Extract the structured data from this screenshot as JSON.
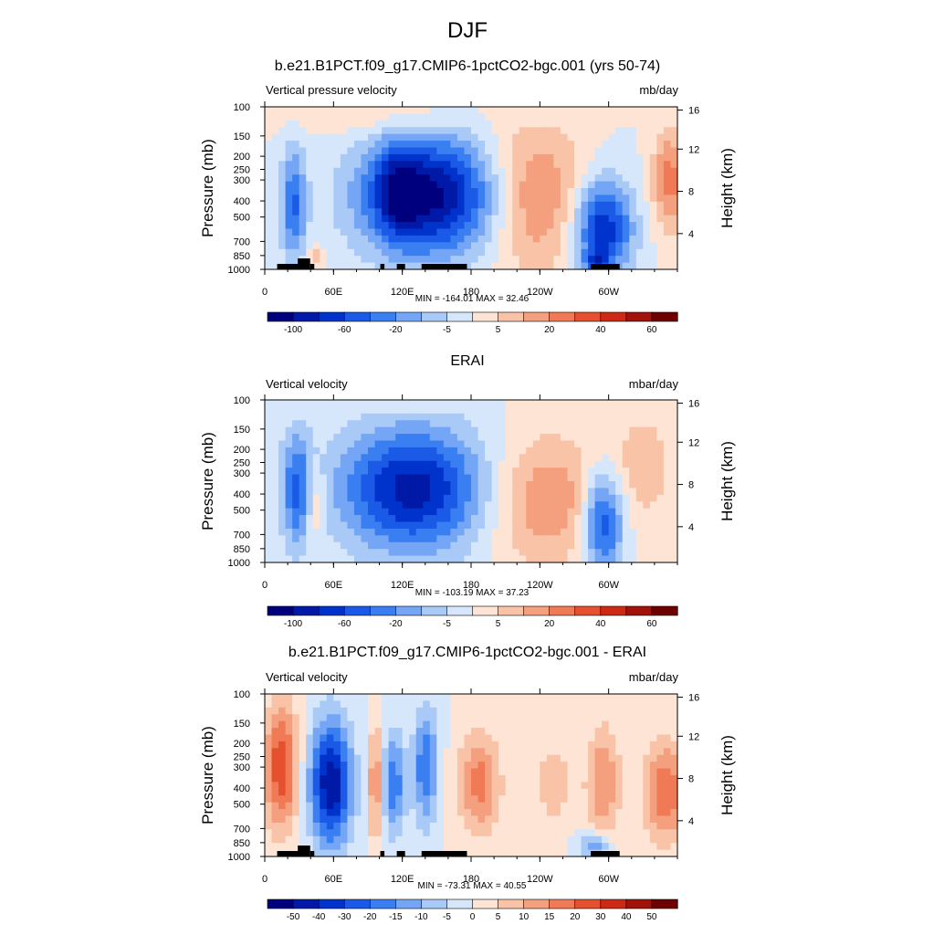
{
  "figure": {
    "title": "DJF"
  },
  "chart_data": [
    {
      "type": "heatmap",
      "title": "b.e21.B1PCT.f09_g17.CMIP6-1pctCO2-bgc.001 (yrs 50-74)",
      "left_label": "Vertical pressure velocity",
      "units": "mb/day",
      "ylabel": "Pressure (mb)",
      "ylabel_right": "Height (km)",
      "x_ticks": [
        "0",
        "60E",
        "120E",
        "180",
        "120W",
        "60W"
      ],
      "y_ticks": [
        "100",
        "150",
        "200",
        "250",
        "300",
        "400",
        "500",
        "700",
        "850",
        "1000"
      ],
      "height_ticks": [
        "4",
        "8",
        "12",
        "16"
      ],
      "stats": "MIN = -164.01  MAX =  32.46",
      "colorbar_labels": [
        "-100",
        "-60",
        "-20",
        "-5",
        "5",
        "20",
        "40",
        "60"
      ],
      "min": -164.01,
      "max": 32.46
    },
    {
      "type": "heatmap",
      "title": "ERAI",
      "left_label": "Vertical velocity",
      "units": "mbar/day",
      "ylabel": "Pressure (mb)",
      "ylabel_right": "Height (km)",
      "x_ticks": [
        "0",
        "60E",
        "120E",
        "180",
        "120W",
        "60W"
      ],
      "y_ticks": [
        "100",
        "150",
        "200",
        "250",
        "300",
        "400",
        "500",
        "700",
        "850",
        "1000"
      ],
      "height_ticks": [
        "4",
        "8",
        "12",
        "16"
      ],
      "stats": "MIN = -103.19  MAX =  37.23",
      "colorbar_labels": [
        "-100",
        "-60",
        "-20",
        "-5",
        "5",
        "20",
        "40",
        "60"
      ],
      "min": -103.19,
      "max": 37.23
    },
    {
      "type": "heatmap",
      "title": "b.e21.B1PCT.f09_g17.CMIP6-1pctCO2-bgc.001 - ERAI",
      "left_label": "Vertical velocity",
      "units": "mbar/day",
      "ylabel": "Pressure (mb)",
      "ylabel_right": "Height (km)",
      "x_ticks": [
        "0",
        "60E",
        "120E",
        "180",
        "120W",
        "60W"
      ],
      "y_ticks": [
        "100",
        "150",
        "200",
        "250",
        "300",
        "400",
        "500",
        "700",
        "850",
        "1000"
      ],
      "height_ticks": [
        "4",
        "8",
        "12",
        "16"
      ],
      "stats": "MIN = -73.31  MAX =  40.55",
      "colorbar_labels": [
        "-50",
        "-40",
        "-30",
        "-20",
        "-15",
        "-10",
        "-5",
        "0",
        "5",
        "10",
        "15",
        "20",
        "30",
        "40",
        "50"
      ],
      "min": -73.31,
      "max": 40.55
    }
  ],
  "colors": {
    "colorbar": [
      "#00007f",
      "#0019a6",
      "#0033cc",
      "#1a5ae6",
      "#3a7ff2",
      "#74a6f5",
      "#a9c9f7",
      "#d7e7fb",
      "#fde4d4",
      "#f9c3a8",
      "#f4a07e",
      "#ef7a55",
      "#e5502f",
      "#cc2a14",
      "#a0120a",
      "#6e0000"
    ],
    "neutral": "#ffffff",
    "topography": "#000000"
  }
}
